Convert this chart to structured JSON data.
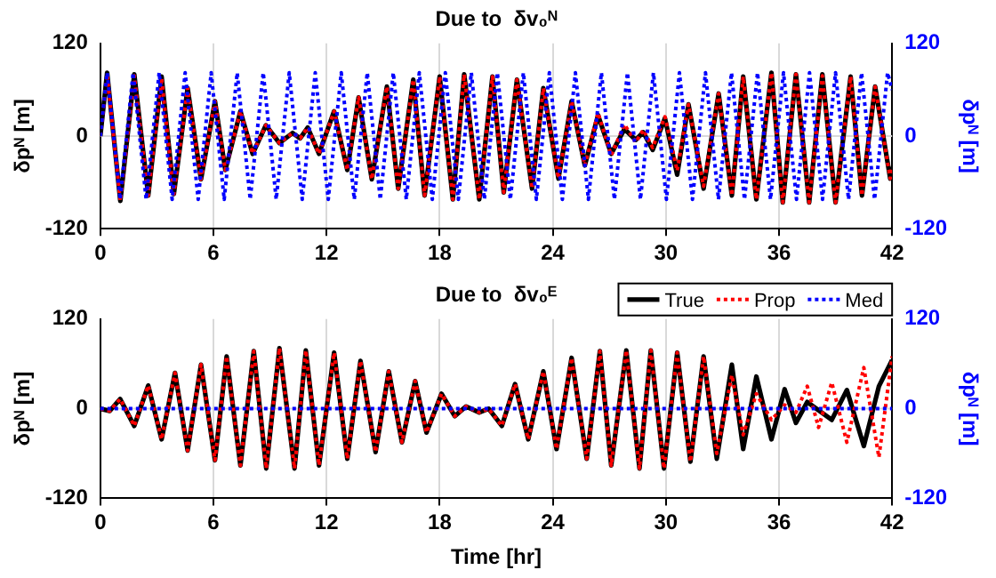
{
  "chart_data": [
    {
      "type": "line",
      "title": "Due to  δv₀ᴺ",
      "ylabel": "δpᴺ [m]",
      "y2label": "δpᴺ [m]",
      "xlim": [
        0,
        42
      ],
      "xticks": [
        0,
        6,
        12,
        18,
        24,
        30,
        36,
        42
      ],
      "ylim": [
        -120,
        120
      ],
      "yticks": [
        -120,
        0,
        120
      ],
      "y2lim": [
        -120,
        120
      ],
      "y2ticks": [
        -120,
        0,
        120
      ],
      "grid": true,
      "x": [
        0,
        0.36,
        1.06,
        1.8,
        2.54,
        3.25,
        3.9,
        4.63,
        5.34,
        6.08,
        6.63,
        7.43,
        8.08,
        8.78,
        9.5,
        10.2,
        10.6,
        11,
        11.6,
        12.4,
        13.1,
        13.7,
        14.4,
        15.2,
        15.8,
        16.6,
        17.2,
        18,
        18.7,
        19.3,
        20.1,
        20.8,
        21.4,
        22.1,
        22.9,
        23.5,
        24.3,
        25,
        25.7,
        26.4,
        27.1,
        27.8,
        28.4,
        28.8,
        29.3,
        29.95,
        30.6,
        31.2,
        32,
        32.8,
        33.5,
        34.1,
        34.8,
        35.6,
        36.2,
        36.9,
        37.6,
        38.3,
        39,
        39.8,
        40.4,
        41.1,
        41.9,
        42
      ],
      "series": [
        {
          "color": "#000000",
          "line_style": "solid",
          "values": [
            0,
            82,
            -84,
            80,
            -77,
            77,
            -75,
            62,
            -56,
            45,
            -44,
            32,
            -23,
            14,
            -9,
            4,
            -3,
            11,
            -23,
            32,
            -44,
            50,
            -56,
            64,
            -68,
            73,
            -77,
            77,
            -82,
            80,
            -82,
            77,
            -73,
            73,
            -68,
            62,
            -55,
            45,
            -38,
            27,
            -23,
            9,
            -5,
            5,
            -18,
            23,
            -50,
            41,
            -68,
            55,
            -77,
            77,
            -82,
            82,
            -86,
            80,
            -86,
            80,
            -86,
            77,
            -77,
            64,
            -55,
            -40
          ]
        },
        {
          "color": "#ff0000",
          "line_style": "dotted",
          "values": [
            0,
            80,
            -84,
            78,
            -77,
            75,
            -75,
            62,
            -56,
            45,
            -44,
            32,
            -23,
            14,
            -9,
            4,
            -3,
            11,
            -23,
            32,
            -44,
            50,
            -56,
            64,
            -68,
            73,
            -77,
            77,
            -82,
            80,
            -82,
            77,
            -73,
            73,
            -68,
            62,
            -55,
            45,
            -38,
            30,
            -25,
            15,
            -8,
            8,
            -15,
            25,
            -45,
            41,
            -65,
            55,
            -77,
            77,
            -82,
            82,
            -86,
            80,
            -86,
            78,
            -86,
            77,
            -77,
            64,
            -55,
            -40
          ]
        },
        {
          "color": "#0000ff",
          "line_style": "dotted",
          "axis": "y2",
          "x": [
            0,
            0.36,
            1.05,
            1.74,
            2.43,
            3.12,
            3.81,
            4.5,
            5.19,
            5.88,
            6.57,
            7.26,
            7.95,
            8.64,
            9.33,
            10.02,
            10.71,
            11.4,
            12.09,
            12.78,
            13.47,
            14.16,
            14.85,
            15.54,
            16.23,
            16.92,
            17.61,
            18.3,
            18.99,
            19.68,
            20.37,
            21.06,
            21.75,
            22.44,
            23.13,
            23.82,
            24.51,
            25.2,
            25.89,
            26.58,
            27.27,
            27.96,
            28.65,
            29.34,
            30.03,
            30.72,
            31.41,
            32.1,
            32.79,
            33.48,
            34.17,
            34.86,
            35.55,
            36.24,
            36.93,
            37.62,
            38.31,
            39,
            39.69,
            40.38,
            41.07,
            41.76,
            42
          ],
          "values": [
            0,
            82,
            -82,
            82,
            -82,
            82,
            -82,
            82,
            -82,
            82,
            -82,
            82,
            -82,
            82,
            -82,
            82,
            -82,
            82,
            -82,
            82,
            -82,
            82,
            -82,
            82,
            -82,
            82,
            -82,
            82,
            -82,
            82,
            -82,
            82,
            -82,
            82,
            -82,
            82,
            -82,
            82,
            -82,
            82,
            -82,
            82,
            -82,
            82,
            -82,
            82,
            -82,
            82,
            -82,
            82,
            -82,
            82,
            -82,
            82,
            -82,
            82,
            -82,
            82,
            -82,
            82,
            -82,
            82,
            60
          ]
        }
      ]
    },
    {
      "type": "line",
      "title": "Due to  δv₀ᴱ",
      "xlabel": "Time [hr]",
      "ylabel": "δpᴺ [m]",
      "y2label": "δpᴺ [m]",
      "xlim": [
        0,
        42
      ],
      "xticks": [
        0,
        6,
        12,
        18,
        24,
        30,
        36,
        42
      ],
      "ylim": [
        -120,
        120
      ],
      "yticks": [
        -120,
        0,
        120
      ],
      "y2lim": [
        -120,
        120
      ],
      "y2ticks": [
        -120,
        0,
        120
      ],
      "grid": true,
      "legend": "top right",
      "x": [
        0,
        0.5,
        1.05,
        1.8,
        2.54,
        3.25,
        3.96,
        4.63,
        5.34,
        6.08,
        6.7,
        7.43,
        8.14,
        8.8,
        9.5,
        10.3,
        10.9,
        11.6,
        12.4,
        13.1,
        13.8,
        14.6,
        15.3,
        16,
        16.7,
        17.3,
        18.1,
        18.8,
        19.4,
        20.1,
        20.6,
        21.3,
        22,
        22.7,
        23.5,
        24.2,
        25,
        25.8,
        26.5,
        27.1,
        27.9,
        28.6,
        29.2,
        29.9,
        30.6,
        31.3,
        32,
        32.7,
        33.5,
        34.1,
        34.8,
        35.6,
        36.3,
        36.9,
        37.5,
        38.1,
        38.8,
        39.6,
        40.5,
        41.3,
        42
      ],
      "series": [
        {
          "name": "True",
          "color": "#000000",
          "line_style": "solid",
          "values": [
            0,
            -3,
            13,
            -23,
            31,
            -41,
            48,
            -56,
            59,
            -69,
            70,
            -76,
            77,
            -80,
            81,
            -80,
            78,
            -76,
            75,
            -67,
            64,
            -58,
            50,
            -45,
            37,
            -32,
            20,
            -10,
            3,
            -5,
            0,
            -23,
            33,
            -41,
            50,
            -54,
            68,
            -67,
            77,
            -76,
            78,
            -80,
            78,
            -80,
            75,
            -71,
            70,
            -67,
            59,
            -54,
            43,
            -41,
            26,
            -19,
            9,
            -2,
            -15,
            25,
            -50,
            30,
            65
          ]
        },
        {
          "name": "Prop",
          "color": "#ff0000",
          "line_style": "dotted",
          "values": [
            0,
            -3,
            13,
            -23,
            31,
            -41,
            48,
            -56,
            59,
            -69,
            70,
            -76,
            77,
            -80,
            81,
            -80,
            78,
            -76,
            75,
            -67,
            64,
            -58,
            50,
            -45,
            37,
            -32,
            20,
            -10,
            3,
            -5,
            0,
            -23,
            33,
            -41,
            50,
            -54,
            68,
            -67,
            77,
            -76,
            78,
            -80,
            78,
            -80,
            75,
            -71,
            70,
            -60,
            45,
            -35,
            20,
            -15,
            5,
            -5,
            30,
            -25,
            35,
            -45,
            55,
            -65,
            70
          ]
        },
        {
          "name": "Med",
          "color": "#0000ff",
          "line_style": "dotted",
          "axis": "y2",
          "x": [
            0,
            42
          ],
          "values": [
            0,
            0
          ]
        }
      ]
    }
  ]
}
